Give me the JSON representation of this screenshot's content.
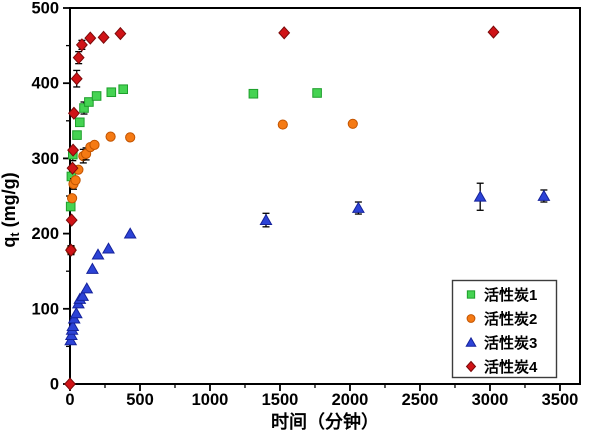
{
  "figure": {
    "background": "#ffffff",
    "axis_color": "#000000",
    "errorbar_color": "#000000",
    "legend_border_color": "#3c3c3c"
  },
  "chart_data": {
    "type": "scatter",
    "title": "",
    "xlabel": "时间（分钟）",
    "ylabel": "qt (mg/g)",
    "ylabel_parts": {
      "base": "q",
      "sub": "t",
      "units": " (mg/g)"
    },
    "xlim": [
      0,
      3643
    ],
    "ylim": [
      0,
      500
    ],
    "x_ticks": [
      0,
      500,
      1000,
      1500,
      2000,
      2500,
      3000,
      3500
    ],
    "x_minor_step": 250,
    "y_ticks": [
      0,
      100,
      200,
      300,
      400,
      500
    ],
    "y_minor_step": 50,
    "grid": false,
    "legend_position": "bottom-right",
    "series": [
      {
        "name": "活性炭1",
        "marker": "square",
        "color": "#45d352",
        "edge": "#1d9e2b",
        "points": [
          {
            "t": 5,
            "q": 236,
            "err": 0
          },
          {
            "t": 10,
            "q": 276,
            "err": 0
          },
          {
            "t": 20,
            "q": 305,
            "err": 8
          },
          {
            "t": 50,
            "q": 331,
            "err": 0
          },
          {
            "t": 70,
            "q": 348,
            "err": 0
          },
          {
            "t": 100,
            "q": 367,
            "err": 8
          },
          {
            "t": 135,
            "q": 375,
            "err": 0
          },
          {
            "t": 190,
            "q": 383,
            "err": 0
          },
          {
            "t": 295,
            "q": 388,
            "err": 0
          },
          {
            "t": 380,
            "q": 392,
            "err": 0
          },
          {
            "t": 1310,
            "q": 386,
            "err": 4
          },
          {
            "t": 1765,
            "q": 387,
            "err": 0
          }
        ]
      },
      {
        "name": "活性炭2",
        "marker": "circle",
        "color": "#f57a14",
        "edge": "#c25400",
        "points": [
          {
            "t": 7,
            "q": 178,
            "err": 6
          },
          {
            "t": 15,
            "q": 247,
            "err": 0
          },
          {
            "t": 25,
            "q": 266,
            "err": 7
          },
          {
            "t": 40,
            "q": 271,
            "err": 0
          },
          {
            "t": 60,
            "q": 285,
            "err": 0
          },
          {
            "t": 95,
            "q": 303,
            "err": 9
          },
          {
            "t": 115,
            "q": 306,
            "err": 8
          },
          {
            "t": 145,
            "q": 315,
            "err": 0
          },
          {
            "t": 175,
            "q": 318,
            "err": 0
          },
          {
            "t": 290,
            "q": 329,
            "err": 0
          },
          {
            "t": 430,
            "q": 328,
            "err": 0
          },
          {
            "t": 1520,
            "q": 345,
            "err": 0
          },
          {
            "t": 2020,
            "q": 346,
            "err": 0
          }
        ]
      },
      {
        "name": "活性炭3",
        "marker": "triangle",
        "color": "#2c43d6",
        "edge": "#15229b",
        "points": [
          {
            "t": 5,
            "q": 58,
            "err": 0
          },
          {
            "t": 10,
            "q": 65,
            "err": 0
          },
          {
            "t": 15,
            "q": 72,
            "err": 0
          },
          {
            "t": 20,
            "q": 77,
            "err": 0
          },
          {
            "t": 30,
            "q": 87,
            "err": 0
          },
          {
            "t": 45,
            "q": 94,
            "err": 0
          },
          {
            "t": 60,
            "q": 107,
            "err": 0
          },
          {
            "t": 70,
            "q": 113,
            "err": 0
          },
          {
            "t": 90,
            "q": 117,
            "err": 0
          },
          {
            "t": 120,
            "q": 127,
            "err": 0
          },
          {
            "t": 160,
            "q": 153,
            "err": 0
          },
          {
            "t": 200,
            "q": 172,
            "err": 0
          },
          {
            "t": 275,
            "q": 180,
            "err": 0
          },
          {
            "t": 430,
            "q": 200,
            "err": 0
          },
          {
            "t": 1400,
            "q": 218,
            "err": 9
          },
          {
            "t": 2060,
            "q": 234,
            "err": 8
          },
          {
            "t": 2930,
            "q": 249,
            "err": 18
          },
          {
            "t": 3385,
            "q": 250,
            "err": 8
          }
        ]
      },
      {
        "name": "活性炭4",
        "marker": "diamond",
        "color": "#d01317",
        "edge": "#7a0a0a",
        "points": [
          {
            "t": 0,
            "q": 0,
            "err": 0
          },
          {
            "t": 7,
            "q": 178,
            "err": 5
          },
          {
            "t": 12,
            "q": 218,
            "err": 0
          },
          {
            "t": 18,
            "q": 287,
            "err": 0
          },
          {
            "t": 22,
            "q": 311,
            "err": 0
          },
          {
            "t": 28,
            "q": 360,
            "err": 0
          },
          {
            "t": 48,
            "q": 406,
            "err": 11
          },
          {
            "t": 62,
            "q": 434,
            "err": 8
          },
          {
            "t": 85,
            "q": 451,
            "err": 6
          },
          {
            "t": 145,
            "q": 460,
            "err": 0
          },
          {
            "t": 240,
            "q": 461,
            "err": 0
          },
          {
            "t": 360,
            "q": 466,
            "err": 0
          },
          {
            "t": 1530,
            "q": 467,
            "err": 0
          },
          {
            "t": 3025,
            "q": 468,
            "err": 0
          }
        ]
      }
    ]
  }
}
